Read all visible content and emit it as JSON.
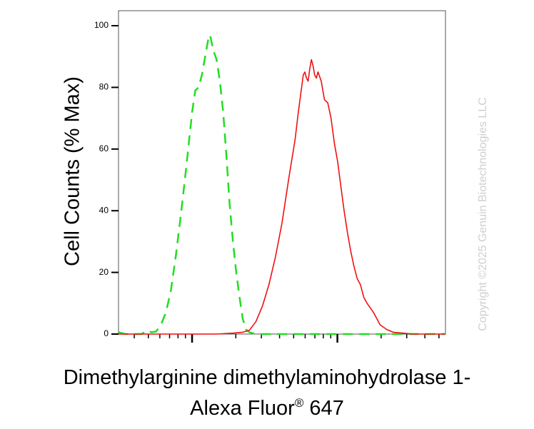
{
  "chart_data": {
    "type": "line",
    "title": "",
    "ylabel": "Cell Counts (% Max)",
    "xlabel_line1": "Dimethylarginine dimethylaminohydrolase 1-",
    "xlabel_line2_main": "Alexa Fluor",
    "xlabel_line2_sup": "®",
    "xlabel_line2_tail": " 647",
    "x_scale": "log",
    "xlim": [
      0,
      1
    ],
    "ylim": [
      0,
      100
    ],
    "y_ticks": [
      {
        "value": 0,
        "label": "0"
      },
      {
        "value": 20,
        "label": "20"
      },
      {
        "value": 40,
        "label": "40"
      },
      {
        "value": 60,
        "label": "60"
      },
      {
        "value": 80,
        "label": "80"
      },
      {
        "value": 100,
        "label": "100"
      }
    ],
    "grid": false,
    "legend": "none",
    "series": [
      {
        "style": "dashed",
        "color": "#22dd22",
        "points": [
          [
            0.0,
            0.6
          ],
          [
            0.02,
            0
          ],
          [
            0.07,
            0
          ],
          [
            0.08,
            0.6
          ],
          [
            0.09,
            1.2
          ],
          [
            0.1,
            0.6
          ],
          [
            0.115,
            0.8
          ],
          [
            0.13,
            3
          ],
          [
            0.145,
            7
          ],
          [
            0.16,
            14
          ],
          [
            0.175,
            25
          ],
          [
            0.19,
            38
          ],
          [
            0.205,
            52
          ],
          [
            0.215,
            62
          ],
          [
            0.225,
            72
          ],
          [
            0.235,
            79
          ],
          [
            0.245,
            80
          ],
          [
            0.255,
            84
          ],
          [
            0.265,
            90
          ],
          [
            0.275,
            96
          ],
          [
            0.28,
            97
          ],
          [
            0.29,
            92
          ],
          [
            0.3,
            89
          ],
          [
            0.31,
            82
          ],
          [
            0.32,
            72
          ],
          [
            0.33,
            58
          ],
          [
            0.34,
            42
          ],
          [
            0.35,
            30
          ],
          [
            0.36,
            20
          ],
          [
            0.37,
            12
          ],
          [
            0.38,
            5
          ],
          [
            0.39,
            1.5
          ],
          [
            0.4,
            0.6
          ],
          [
            0.42,
            0
          ],
          [
            1.0,
            0
          ]
        ]
      },
      {
        "style": "solid",
        "color": "#ee1111",
        "points": [
          [
            0.0,
            0
          ],
          [
            0.3,
            0
          ],
          [
            0.35,
            0.3
          ],
          [
            0.38,
            0.6
          ],
          [
            0.4,
            1.2
          ],
          [
            0.42,
            4
          ],
          [
            0.44,
            9
          ],
          [
            0.46,
            16
          ],
          [
            0.48,
            25
          ],
          [
            0.5,
            36
          ],
          [
            0.52,
            50
          ],
          [
            0.54,
            63
          ],
          [
            0.55,
            72
          ],
          [
            0.56,
            80
          ],
          [
            0.565,
            84
          ],
          [
            0.57,
            85
          ],
          [
            0.575,
            83
          ],
          [
            0.58,
            82
          ],
          [
            0.585,
            86
          ],
          [
            0.59,
            89
          ],
          [
            0.595,
            87
          ],
          [
            0.6,
            84
          ],
          [
            0.605,
            83
          ],
          [
            0.61,
            85
          ],
          [
            0.62,
            82
          ],
          [
            0.63,
            76
          ],
          [
            0.64,
            75
          ],
          [
            0.65,
            70
          ],
          [
            0.66,
            62
          ],
          [
            0.67,
            56
          ],
          [
            0.68,
            48
          ],
          [
            0.69,
            40
          ],
          [
            0.7,
            33
          ],
          [
            0.71,
            27
          ],
          [
            0.72,
            22
          ],
          [
            0.73,
            18
          ],
          [
            0.74,
            16
          ],
          [
            0.75,
            12
          ],
          [
            0.76,
            10
          ],
          [
            0.77,
            8.5
          ],
          [
            0.78,
            7
          ],
          [
            0.79,
            5
          ],
          [
            0.8,
            3
          ],
          [
            0.82,
            1.5
          ],
          [
            0.84,
            0.6
          ],
          [
            0.87,
            0.3
          ],
          [
            0.9,
            0
          ],
          [
            1.0,
            0
          ]
        ]
      }
    ]
  },
  "watermark": "Copyright ©2025 Genuin Biotechnologies LLC"
}
